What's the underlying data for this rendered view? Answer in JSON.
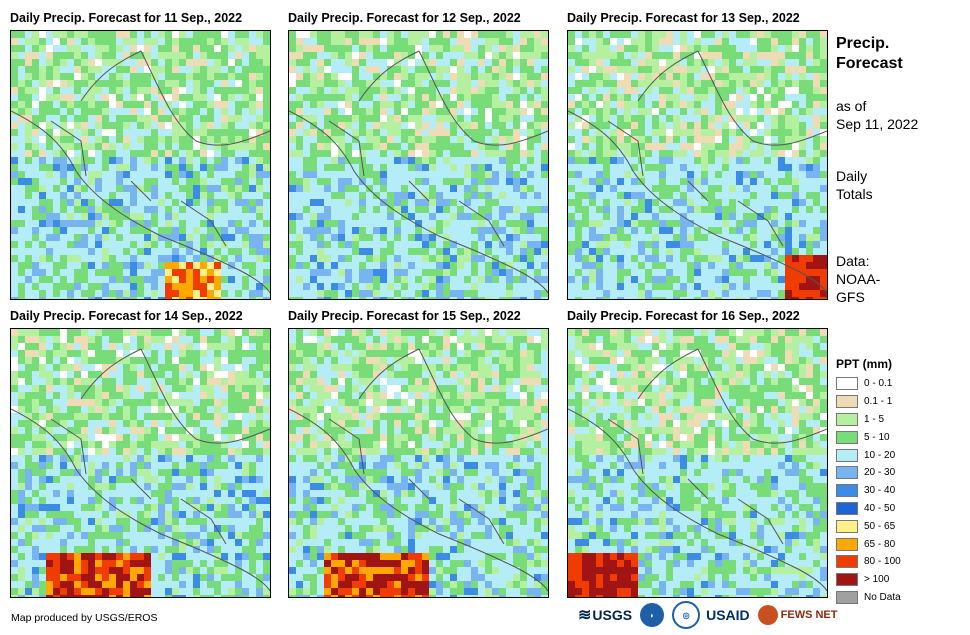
{
  "panels": [
    {
      "title": "Daily Precip. Forecast for 11 Sep., 2022"
    },
    {
      "title": "Daily Precip. Forecast for 12 Sep., 2022"
    },
    {
      "title": "Daily Precip. Forecast for 13 Sep., 2022"
    },
    {
      "title": "Daily Precip. Forecast for 14 Sep., 2022"
    },
    {
      "title": "Daily Precip. Forecast for 15 Sep., 2022"
    },
    {
      "title": "Daily Precip. Forecast for 16 Sep., 2022"
    }
  ],
  "side": {
    "title_line1": "Precip.",
    "title_line2": "Forecast",
    "asof_line1": "as of",
    "asof_line2": "Sep 11, 2022",
    "daily_line1": "Daily",
    "daily_line2": "Totals",
    "data_line1": "Data:",
    "data_line2": "NOAA-",
    "data_line3": "GFS"
  },
  "legend": {
    "title": "PPT (mm)",
    "items": [
      {
        "label": "0 - 0.1",
        "color": "#ffffff"
      },
      {
        "label": "0.1 - 1",
        "color": "#f0dcb4"
      },
      {
        "label": "1 - 5",
        "color": "#b4f0a0"
      },
      {
        "label": "5 - 10",
        "color": "#78dc78"
      },
      {
        "label": "10 - 20",
        "color": "#b4ecf8"
      },
      {
        "label": "20 - 30",
        "color": "#78b4f0"
      },
      {
        "label": "30 - 40",
        "color": "#3c8ce6"
      },
      {
        "label": "40 - 50",
        "color": "#1e64d2"
      },
      {
        "label": "50 - 65",
        "color": "#fff08c"
      },
      {
        "label": "65 - 80",
        "color": "#ffa800"
      },
      {
        "label": "80 - 100",
        "color": "#f03c00"
      },
      {
        "label": "> 100",
        "color": "#a01414"
      },
      {
        "label": "No Data",
        "color": "#a0a0a0"
      }
    ]
  },
  "footer": {
    "credit": "Map produced by USGS/EROS"
  },
  "logos": {
    "usgs": "USGS",
    "usaid": "USAID",
    "fewsnet": "FEWS NET"
  }
}
